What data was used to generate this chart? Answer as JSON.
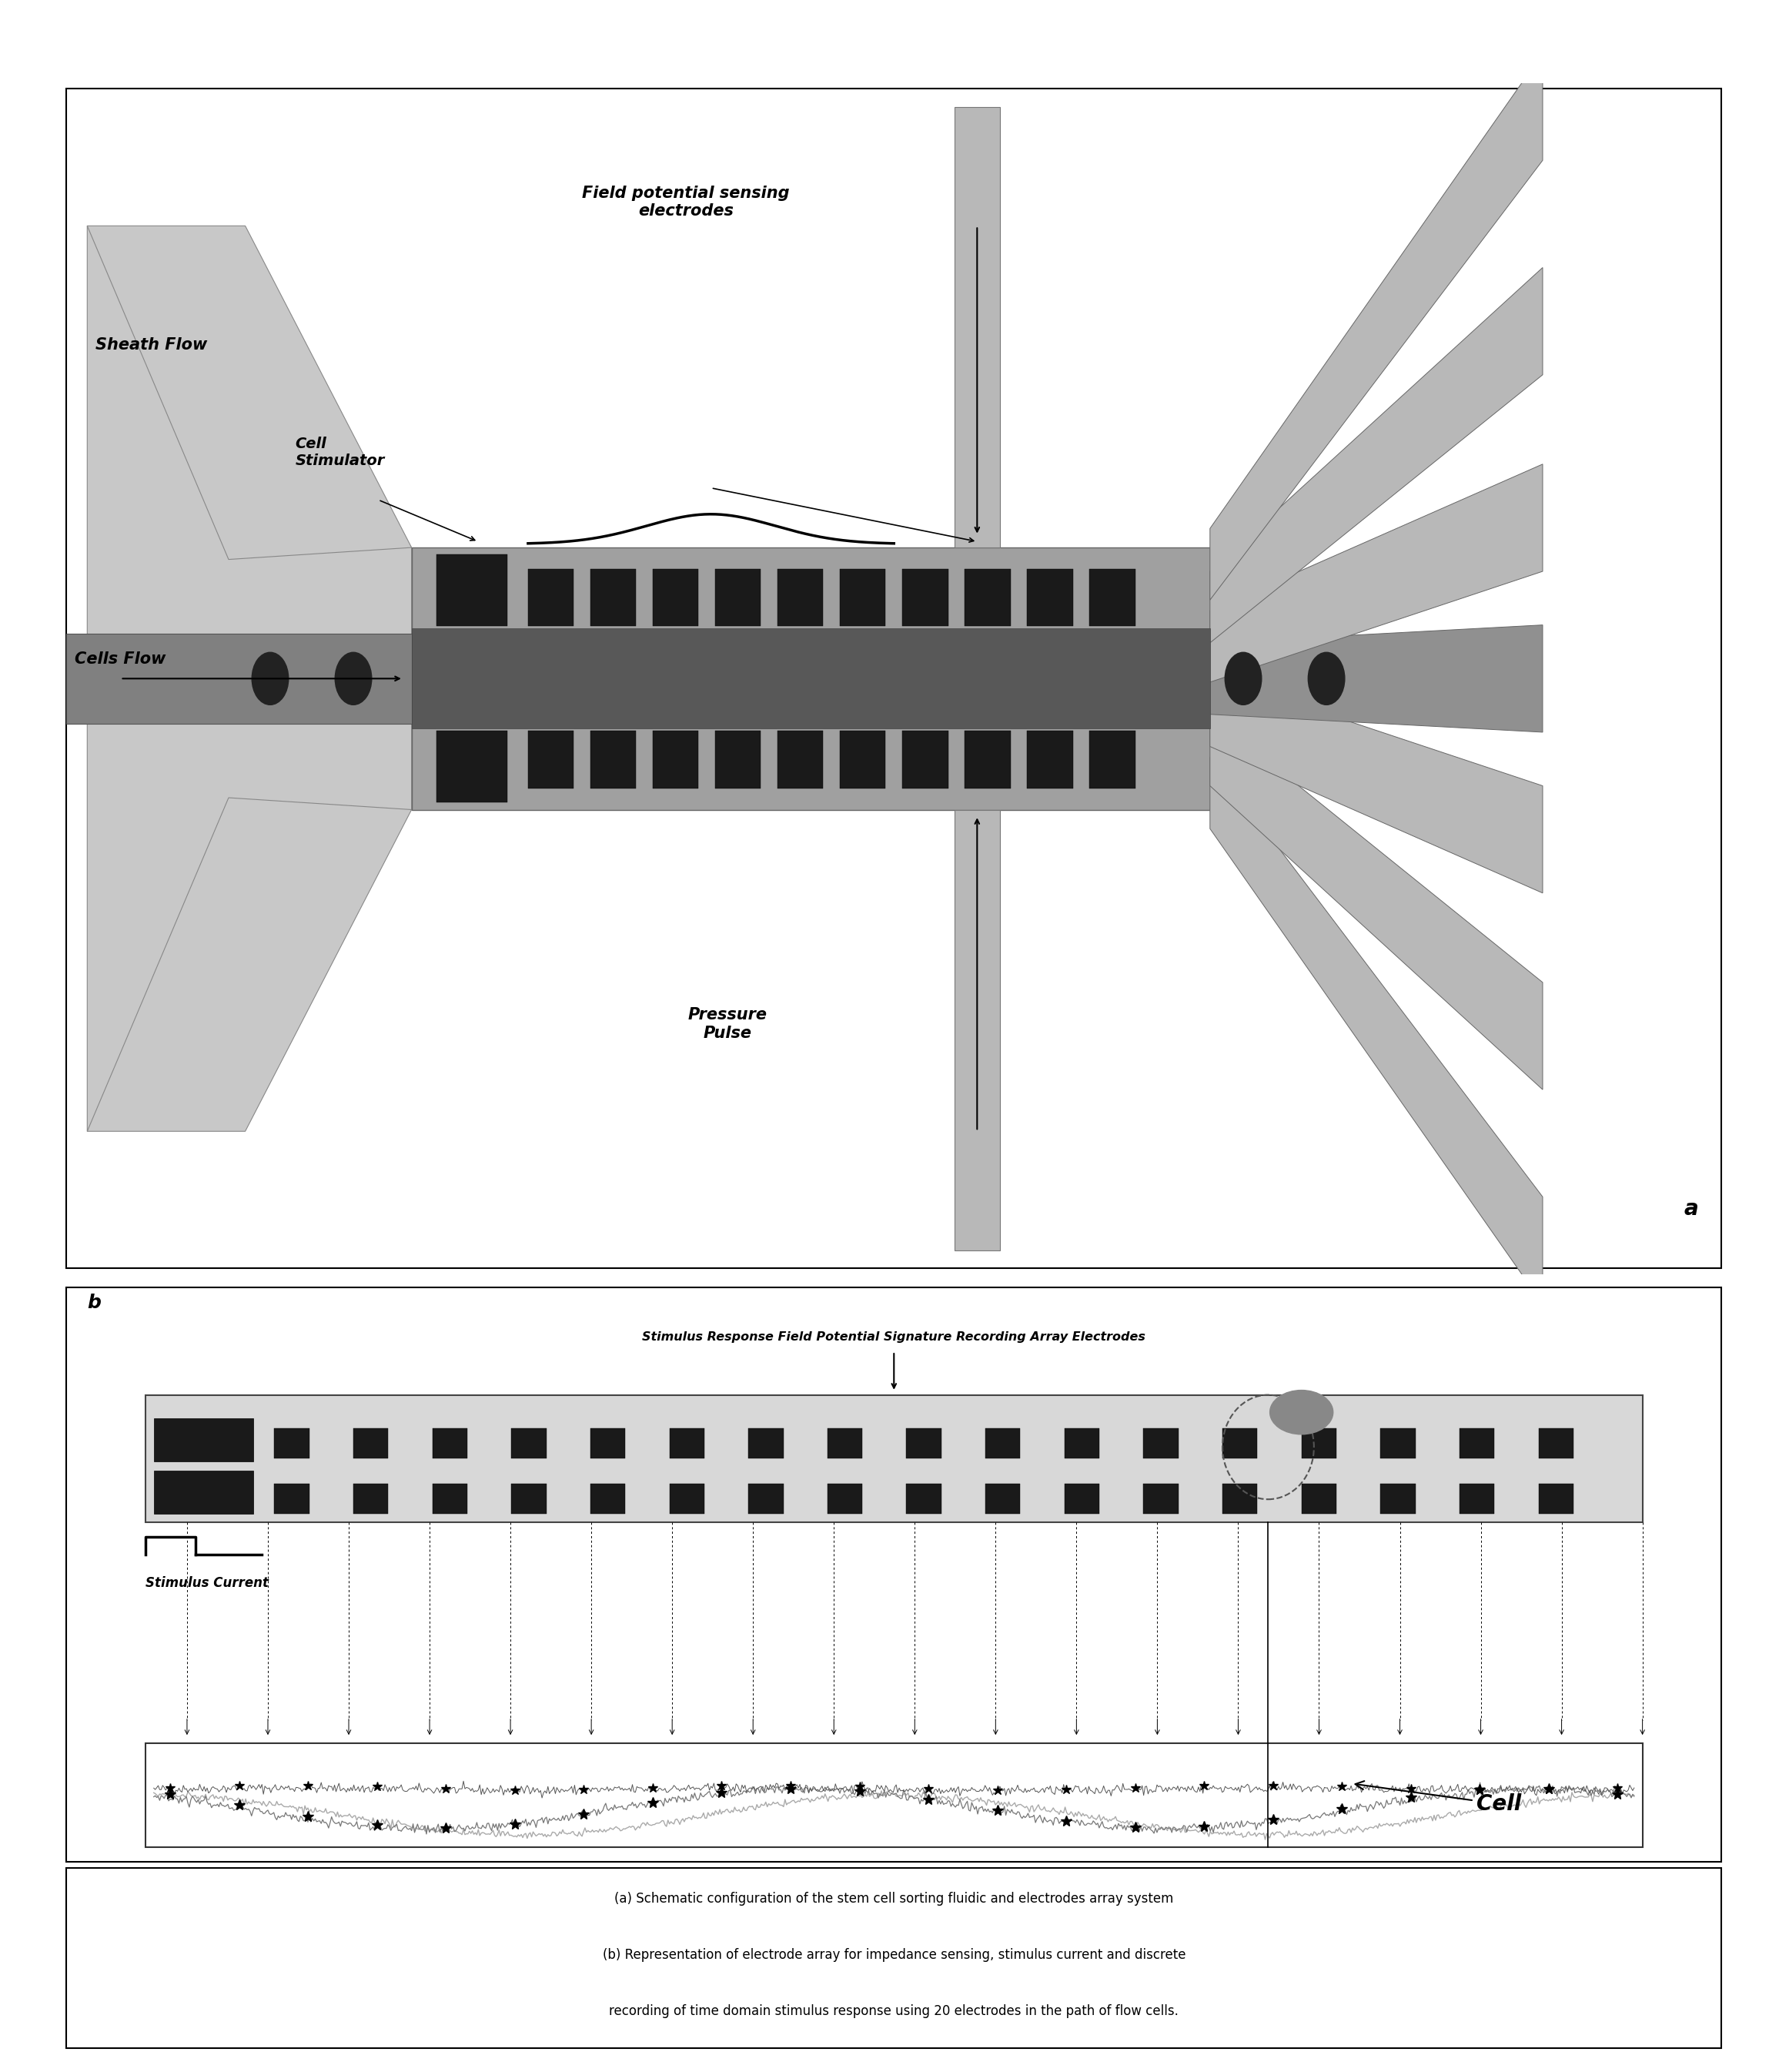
{
  "fig_width": 23.11,
  "fig_height": 26.91,
  "bg_color": "#ffffff",
  "panel_a_label": "a",
  "panel_b_label": "b",
  "sheath_flow": "Sheath Flow",
  "cell_stimulator": "Cell\nStimulator",
  "cells_flow": "Cells Flow",
  "field_potential": "Field potential sensing\nelectrodes",
  "pressure_pulse": "Pressure\nPulse",
  "title_b": "Stimulus Response Field Potential Signature Recording Array Electrodes",
  "stimulus_label": "Stimulus Current",
  "cell_label": "Cell",
  "caption_line1": "(a) Schematic configuration of the stem cell sorting fluidic and electrodes array system",
  "caption_line2": "(b) Representation of electrode array for impedance sensing, stimulus current and discrete",
  "caption_line3": "recording of time domain stimulus response using 20 electrodes in the path of flow cells.",
  "light_gray": "#c0c0c0",
  "medium_gray": "#999999",
  "dark_gray": "#666666",
  "electrode_dark": "#1a1a1a",
  "channel_medium": "#909090",
  "sheath_light": "#b0b0b0"
}
